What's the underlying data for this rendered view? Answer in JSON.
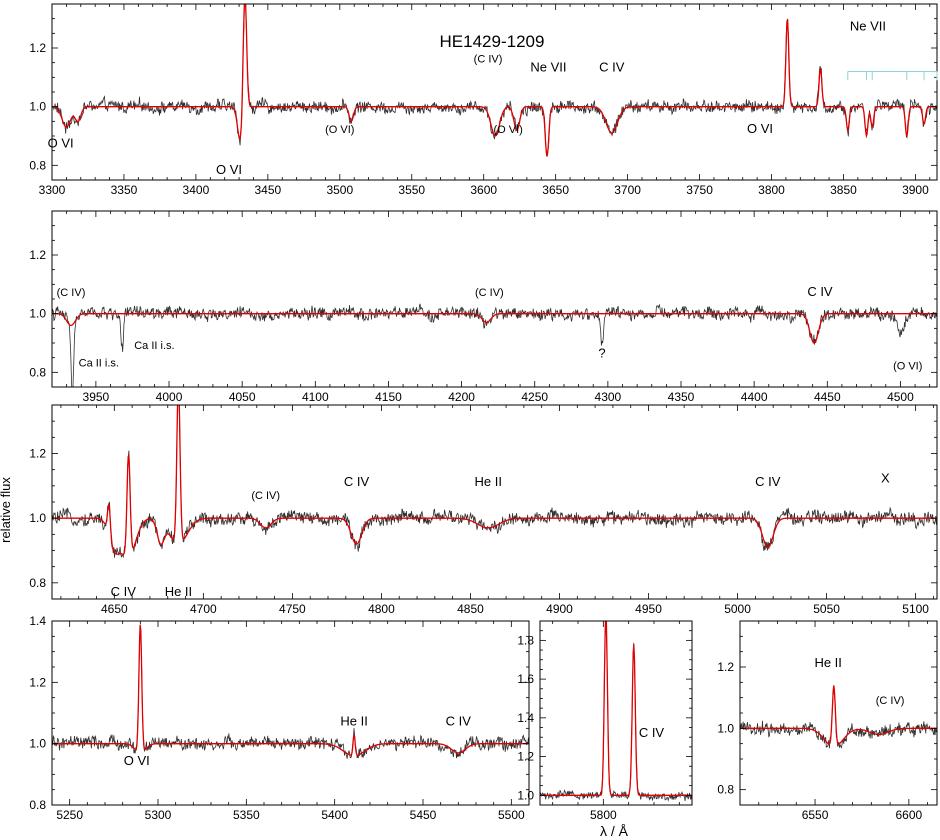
{
  "figure": {
    "title": "HE1429-1209",
    "ylabel": "relative flux",
    "xlabel": "λ / Å"
  },
  "colors": {
    "model": "#e00000",
    "observed": "#303030",
    "nevii_marks": "#8fd3d8"
  },
  "chart_data": [
    {
      "type": "line",
      "panel": "row1",
      "xlim": [
        3300,
        3915
      ],
      "ylim": [
        0.75,
        1.35
      ],
      "xticks": [
        3300,
        3350,
        3400,
        3450,
        3500,
        3550,
        3600,
        3650,
        3700,
        3750,
        3800,
        3850,
        3900
      ],
      "yticks": [
        0.8,
        1.0,
        1.2
      ],
      "series": [],
      "features": [
        {
          "x": 3310,
          "depth": 0.07,
          "w": 3,
          "type": "abs"
        },
        {
          "x": 3318,
          "depth": 0.05,
          "w": 2,
          "type": "abs"
        },
        {
          "x": 3431,
          "depth": 0.12,
          "w": 2,
          "type": "abs"
        },
        {
          "x": 3434,
          "depth": 0.2,
          "w": 1.2,
          "type": "em",
          "amp": 0.42
        },
        {
          "x": 3508,
          "depth": 0.05,
          "w": 1.5,
          "type": "abs"
        },
        {
          "x": 3608,
          "depth": 0.1,
          "w": 3,
          "type": "abs"
        },
        {
          "x": 3623,
          "depth": 0.08,
          "w": 2,
          "type": "abs"
        },
        {
          "x": 3644,
          "depth": 0.17,
          "w": 1.2,
          "type": "abs"
        },
        {
          "x": 3689,
          "depth": 0.09,
          "w": 4,
          "type": "abs"
        },
        {
          "x": 3811,
          "depth": 0,
          "w": 1,
          "type": "em",
          "amp": 0.3
        },
        {
          "x": 3834,
          "depth": 0,
          "w": 1,
          "type": "em",
          "amp": 0.13
        },
        {
          "x": 3853,
          "depth": 0.08,
          "w": 1,
          "type": "abs"
        },
        {
          "x": 3866,
          "depth": 0.1,
          "w": 1,
          "type": "abs"
        },
        {
          "x": 3870,
          "depth": 0.07,
          "w": 1,
          "type": "abs"
        },
        {
          "x": 3894,
          "depth": 0.1,
          "w": 1,
          "type": "abs"
        },
        {
          "x": 3906,
          "depth": 0.06,
          "w": 1,
          "type": "abs"
        }
      ],
      "annotations": [
        {
          "text": "O VI",
          "x": 3306,
          "y": 0.86
        },
        {
          "text": "O VI",
          "x": 3423,
          "y": 0.77
        },
        {
          "text": "(O VI)",
          "x": 3500,
          "y": 0.91
        },
        {
          "text": "(C IV)",
          "x": 3603,
          "y": 1.15
        },
        {
          "text": "(O VI)",
          "x": 3617,
          "y": 0.91
        },
        {
          "text": "Ne VII",
          "x": 3645,
          "y": 1.12
        },
        {
          "text": "C IV",
          "x": 3689,
          "y": 1.12
        },
        {
          "text": "O VI",
          "x": 3792,
          "y": 0.91
        },
        {
          "text": "Ne VII",
          "x": 3867,
          "y": 1.26
        }
      ],
      "line_marks": [
        3853,
        3866,
        3870,
        3894,
        3906,
        3915
      ]
    },
    {
      "type": "line",
      "panel": "row2",
      "xlim": [
        3920,
        4525
      ],
      "ylim": [
        0.75,
        1.35
      ],
      "xticks": [
        3950,
        4000,
        4050,
        4100,
        4150,
        4200,
        4250,
        4300,
        4350,
        4400,
        4450,
        4500
      ],
      "yticks": [
        0.8,
        1.0,
        1.2
      ],
      "features": [
        {
          "x": 3933,
          "depth": 0.04,
          "w": 3,
          "type": "abs"
        },
        {
          "x": 4217,
          "depth": 0.03,
          "w": 3,
          "type": "abs"
        },
        {
          "x": 4441,
          "depth": 0.1,
          "w": 3,
          "type": "abs"
        }
      ],
      "obs_only": [
        {
          "x": 3934,
          "depth": 0.25,
          "w": 0.8
        },
        {
          "x": 3968,
          "depth": 0.12,
          "w": 0.8
        },
        {
          "x": 4296,
          "depth": 0.09,
          "w": 1.2
        },
        {
          "x": 4500,
          "depth": 0.06,
          "w": 2
        }
      ],
      "annotations": [
        {
          "text": "(C IV)",
          "x": 3933,
          "y": 1.06
        },
        {
          "text": "Ca II i.s.",
          "x": 3952,
          "y": 0.82
        },
        {
          "text": "Ca II i.s.",
          "x": 3990,
          "y": 0.88
        },
        {
          "text": "(C IV)",
          "x": 4219,
          "y": 1.06
        },
        {
          "text": "?",
          "x": 4296,
          "y": 0.85
        },
        {
          "text": "C IV",
          "x": 4445,
          "y": 1.06
        },
        {
          "text": "(O VI)",
          "x": 4505,
          "y": 0.81
        }
      ]
    },
    {
      "type": "line",
      "panel": "row3",
      "xlim": [
        4615,
        5112
      ],
      "ylim": [
        0.75,
        1.35
      ],
      "xticks": [
        4650,
        4700,
        4750,
        4800,
        4850,
        4900,
        4950,
        5000,
        5050,
        5100
      ],
      "yticks": [
        0.8,
        1.0,
        1.2
      ],
      "features": [
        {
          "x": 4650,
          "depth": 0.09,
          "w": 3,
          "type": "abs"
        },
        {
          "x": 4658,
          "depth": 0.12,
          "w": 4,
          "type": "abs"
        },
        {
          "x": 4647,
          "depth": 0,
          "w": 0.8,
          "type": "em",
          "amp": 0.1
        },
        {
          "x": 4658,
          "depth": 0,
          "w": 0.9,
          "type": "em",
          "amp": 0.32
        },
        {
          "x": 4686,
          "depth": 0.08,
          "w": 5,
          "type": "abs"
        },
        {
          "x": 4686,
          "depth": 0,
          "w": 0.9,
          "type": "em",
          "amp": 0.5
        },
        {
          "x": 4676,
          "depth": 0.07,
          "w": 2,
          "type": "abs"
        },
        {
          "x": 4735,
          "depth": 0.03,
          "w": 3,
          "type": "abs"
        },
        {
          "x": 4786,
          "depth": 0.08,
          "w": 3,
          "type": "abs"
        },
        {
          "x": 4860,
          "depth": 0.03,
          "w": 6,
          "type": "abs"
        },
        {
          "x": 5017,
          "depth": 0.09,
          "w": 3,
          "type": "abs"
        }
      ],
      "annotations": [
        {
          "text": "C IV",
          "x": 4655,
          "y": 0.76
        },
        {
          "text": "He II",
          "x": 4686,
          "y": 0.76
        },
        {
          "text": "(C IV)",
          "x": 4735,
          "y": 1.06
        },
        {
          "text": "C IV",
          "x": 4786,
          "y": 1.1
        },
        {
          "text": "He II",
          "x": 4860,
          "y": 1.1
        },
        {
          "text": "C IV",
          "x": 5017,
          "y": 1.1
        },
        {
          "text": "X",
          "x": 5083,
          "y": 1.11
        }
      ]
    },
    {
      "type": "line",
      "panel": "row4a",
      "xlim": [
        5240,
        5510
      ],
      "ylim": [
        0.8,
        1.4
      ],
      "xticks": [
        5250,
        5300,
        5350,
        5400,
        5450,
        5500
      ],
      "yticks": [
        0.8,
        1.0,
        1.2,
        1.4
      ],
      "features": [
        {
          "x": 5290,
          "depth": 0.03,
          "w": 3,
          "type": "abs"
        },
        {
          "x": 5290,
          "depth": 0,
          "w": 0.8,
          "type": "em",
          "amp": 0.42
        },
        {
          "x": 5411,
          "depth": 0.04,
          "w": 6,
          "type": "abs"
        },
        {
          "x": 5411,
          "depth": 0,
          "w": 0.6,
          "type": "em",
          "amp": 0.07
        },
        {
          "x": 5470,
          "depth": 0.03,
          "w": 4,
          "type": "abs"
        }
      ],
      "annotations": [
        {
          "text": "O VI",
          "x": 5288,
          "y": 0.93
        },
        {
          "text": "He II",
          "x": 5411,
          "y": 1.06
        },
        {
          "text": "C IV",
          "x": 5470,
          "y": 1.06
        }
      ]
    },
    {
      "type": "line",
      "panel": "row4b",
      "xlim": [
        5775,
        5835
      ],
      "ylim": [
        0.95,
        1.9
      ],
      "xticks": [
        5800
      ],
      "yticks": [
        1.0,
        1.2,
        1.4,
        1.6,
        1.8
      ],
      "features": [
        {
          "x": 5801,
          "depth": 0,
          "w": 0.6,
          "type": "em",
          "amp": 0.95
        },
        {
          "x": 5812,
          "depth": 0,
          "w": 0.6,
          "type": "em",
          "amp": 0.78
        }
      ],
      "annotations": [
        {
          "text": "C IV",
          "x": 5819,
          "y": 1.3
        }
      ]
    },
    {
      "type": "line",
      "panel": "row4c",
      "xlim": [
        6510,
        6615
      ],
      "ylim": [
        0.75,
        1.35
      ],
      "xticks": [
        6550,
        6600
      ],
      "yticks": [
        0.8,
        1.0,
        1.2
      ],
      "features": [
        {
          "x": 6560,
          "depth": 0.06,
          "w": 5,
          "type": "abs"
        },
        {
          "x": 6560,
          "depth": 0,
          "w": 0.8,
          "type": "em",
          "amp": 0.2
        },
        {
          "x": 6584,
          "depth": 0.02,
          "w": 5,
          "type": "abs"
        }
      ],
      "annotations": [
        {
          "text": "He II",
          "x": 6557,
          "y": 1.2
        },
        {
          "text": "(C IV)",
          "x": 6590,
          "y": 1.08
        }
      ]
    }
  ]
}
